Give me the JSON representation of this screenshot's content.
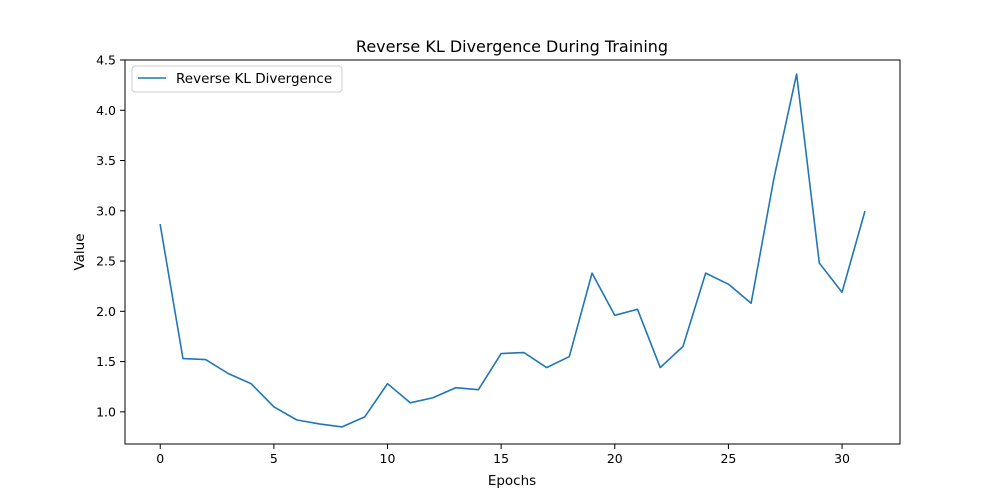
{
  "chart_data": {
    "type": "line",
    "title": "Reverse KL Divergence During Training",
    "xlabel": "Epochs",
    "ylabel": "Value",
    "xlim": [
      -1.55,
      32.55
    ],
    "ylim": [
      0.68,
      4.5
    ],
    "xticks": [
      0,
      5,
      10,
      15,
      20,
      25,
      30
    ],
    "xtick_labels": [
      "0",
      "5",
      "10",
      "15",
      "20",
      "25",
      "30"
    ],
    "yticks": [
      1.0,
      1.5,
      2.0,
      2.5,
      3.0,
      3.5,
      4.0,
      4.5
    ],
    "ytick_labels": [
      "1.0",
      "1.5",
      "2.0",
      "2.5",
      "3.0",
      "3.5",
      "4.0",
      "4.5"
    ],
    "grid": false,
    "legend_position": "top-left",
    "series": [
      {
        "name": "Reverse KL Divergence",
        "color": "#1f77b4",
        "x": [
          0,
          1,
          2,
          3,
          4,
          5,
          6,
          7,
          8,
          9,
          10,
          11,
          12,
          13,
          14,
          15,
          16,
          17,
          18,
          19,
          20,
          21,
          22,
          23,
          24,
          25,
          26,
          27,
          28,
          29,
          30,
          31
        ],
        "values": [
          2.86,
          1.53,
          1.52,
          1.38,
          1.28,
          1.05,
          0.92,
          0.88,
          0.85,
          0.95,
          1.28,
          1.09,
          1.14,
          1.24,
          1.22,
          1.58,
          1.59,
          1.44,
          1.55,
          2.38,
          1.96,
          2.02,
          1.44,
          1.65,
          2.38,
          2.27,
          2.08,
          3.32,
          4.36,
          2.48,
          2.19,
          2.99
        ]
      }
    ]
  }
}
